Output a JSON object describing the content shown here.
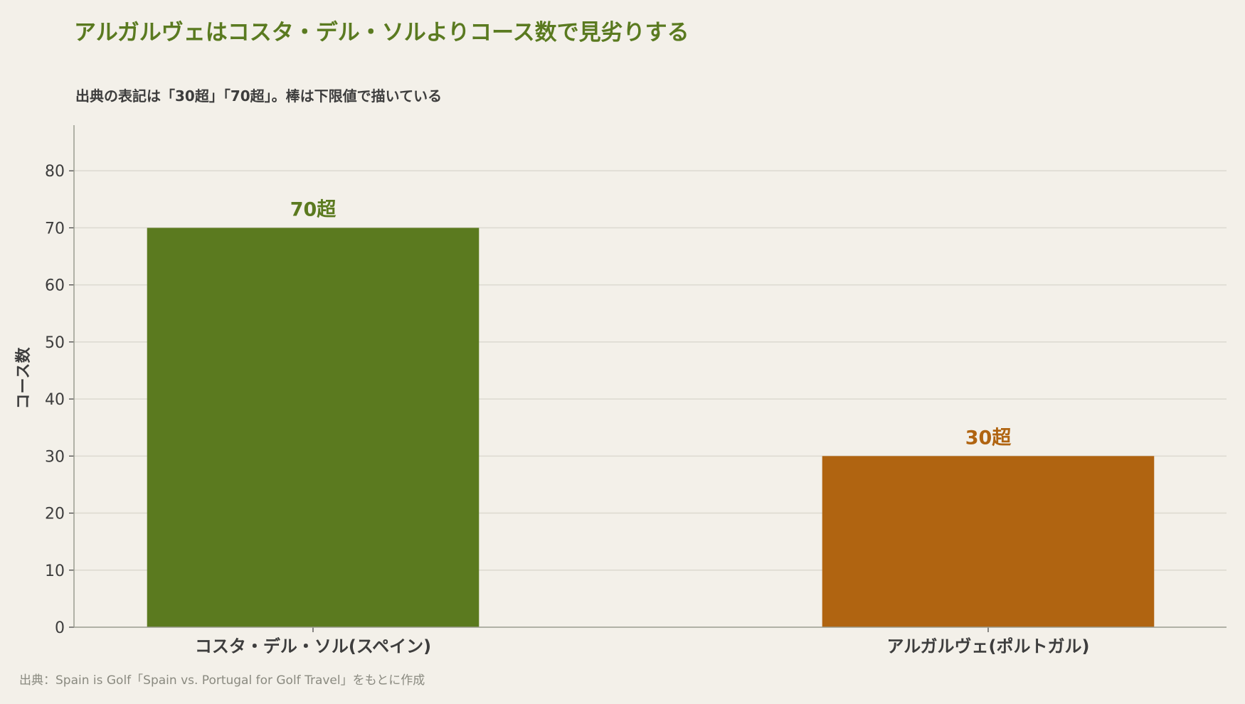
{
  "title": "アルガルヴェはコスタ・デル・ソルよりコース数で見劣りする",
  "subtitle": "出典の表記は「30超」「70超」。棒は下限値で描いている",
  "source": "出典：Spain is Golf「Spain vs. Portugal for Golf Travel」をもとに作成",
  "chart_data": {
    "type": "bar",
    "title": "アルガルヴェはコスタ・デル・ソルよりコース数で見劣りする",
    "subtitle": "出典の表記は「30超」「70超」。棒は下限値で描いている",
    "xlabel": "",
    "ylabel": "コース数",
    "categories": [
      "コスタ・デル・ソル(スペイン)",
      "アルガルヴェ(ポルトガル)"
    ],
    "values": [
      70,
      30
    ],
    "value_labels": [
      "70超",
      "30超"
    ],
    "colors": [
      "#5b7a1f",
      "#b06411"
    ],
    "ylim": [
      0,
      88
    ],
    "yticks": [
      0,
      10,
      20,
      30,
      40,
      50,
      60,
      70,
      80
    ],
    "grid": "horizontal",
    "legend": "none"
  }
}
